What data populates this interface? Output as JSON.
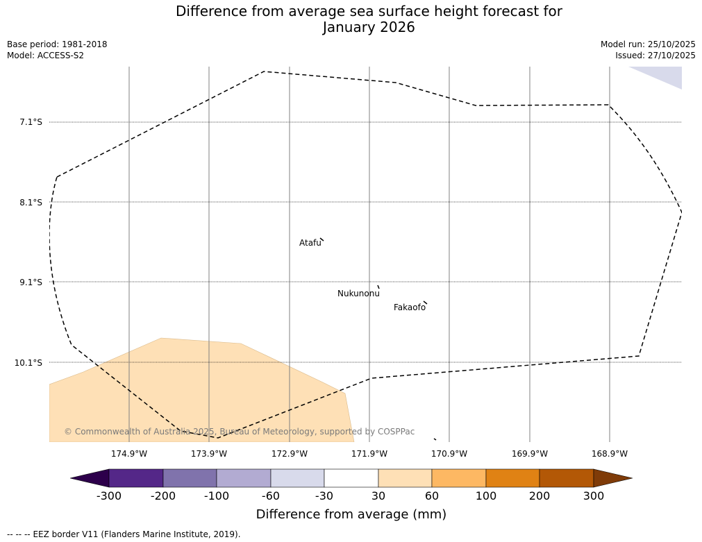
{
  "header": {
    "title_line1": "Difference from average sea surface height forecast for",
    "title_line2": "January 2026",
    "base_period": "Base period: 1981-2018",
    "model": "Model: ACCESS-S2",
    "model_run": "Model run: 25/10/2025",
    "issued": "Issued: 27/10/2025"
  },
  "map": {
    "latitude_labels": [
      "7.1°S",
      "8.1°S",
      "9.1°S",
      "10.1°S"
    ],
    "longitude_labels": [
      "174.9°W",
      "173.9°W",
      "172.9°W",
      "171.9°W",
      "170.9°W",
      "169.9°W",
      "168.9°W"
    ],
    "places": [
      "Atafu",
      "Nukunonu",
      "Fakaofo"
    ],
    "copyright": "© Commonwealth of Australia 2025, Bureau of Meteorology, supported by COSPPac"
  },
  "colorbar": {
    "label": "Difference from average (mm)",
    "ticks": [
      "-300",
      "-200",
      "-100",
      "-60",
      "-30",
      "30",
      "60",
      "100",
      "200",
      "300"
    ],
    "colors": {
      "under": "#2d004b",
      "c1": "#542788",
      "c2": "#8073ac",
      "c3": "#b2abd2",
      "c4": "#d8daeb",
      "c5": "#ffffff",
      "c6": "#fee0b6",
      "c7": "#fdb863",
      "c8": "#e08214",
      "c9": "#b35806",
      "over": "#7f3b08"
    }
  },
  "footer": {
    "legend_symbol": "--  --  --",
    "legend_text": "EEZ border V11 (Flanders Marine Institute, 2019)."
  }
}
